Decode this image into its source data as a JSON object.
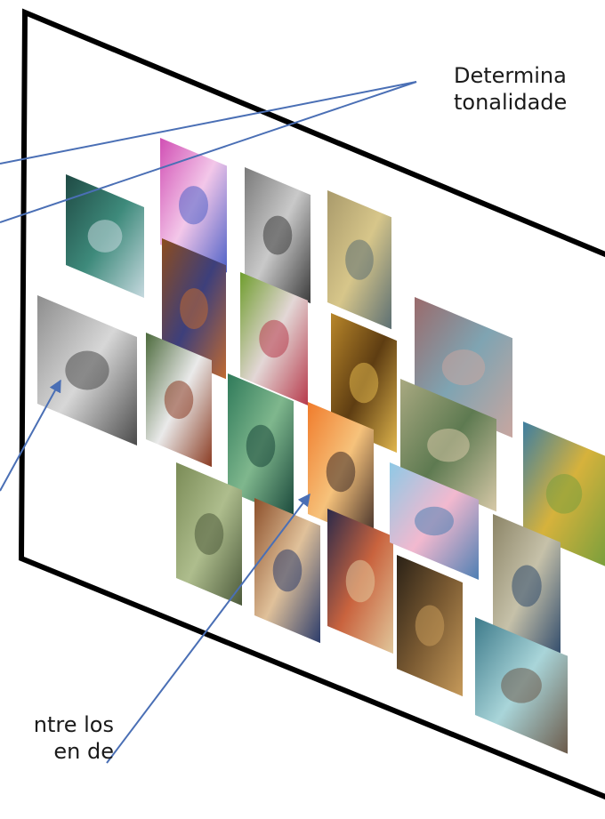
{
  "labels": {
    "top_right": [
      "Determina",
      "tonalidade"
    ],
    "bottom_left": [
      "ntre los",
      "en de"
    ]
  },
  "colors": {
    "plane_border": "#000000",
    "arrow": "#4a6fb5",
    "text": "#1a1a1a"
  },
  "thumbnails": [
    {
      "name": "thumb-teal-ring",
      "colors": [
        "#1f4a44",
        "#3e8a7b",
        "#c6d9df"
      ]
    },
    {
      "name": "thumb-pink-abstract",
      "colors": [
        "#d14fb4",
        "#f3c7e9",
        "#4e61c7"
      ]
    },
    {
      "name": "thumb-grey-leaves",
      "colors": [
        "#7a7a7a",
        "#c9c9c9",
        "#3b3b3b"
      ]
    },
    {
      "name": "thumb-window-figure",
      "colors": [
        "#a99a6b",
        "#d7c68a",
        "#5c6f73"
      ]
    },
    {
      "name": "thumb-hands-sketch",
      "colors": [
        "#8d8d8d",
        "#d7d7d7",
        "#4a4a4a"
      ]
    },
    {
      "name": "thumb-brown-vertical",
      "colors": [
        "#8c4c1e",
        "#3d3f7b",
        "#c06a31"
      ]
    },
    {
      "name": "thumb-bird-colorful",
      "colors": [
        "#6f9d2d",
        "#e3d7d6",
        "#b73a4b"
      ]
    },
    {
      "name": "thumb-figures-white",
      "colors": [
        "#4c6a3c",
        "#eaeaea",
        "#8a3b22"
      ]
    },
    {
      "name": "thumb-golden-cave",
      "colors": [
        "#b8862a",
        "#5e3d12",
        "#e0b64d"
      ]
    },
    {
      "name": "thumb-boat",
      "colors": [
        "#9a6a6b",
        "#7fa4b2",
        "#c8a6a0"
      ]
    },
    {
      "name": "thumb-green-forest",
      "colors": [
        "#2f7a5a",
        "#7fb78d",
        "#19473a"
      ]
    },
    {
      "name": "thumb-sunset-crowd",
      "colors": [
        "#f07b2b",
        "#f6c27b",
        "#3c2a26"
      ]
    },
    {
      "name": "thumb-flamingo",
      "colors": [
        "#a9a981",
        "#5e7a51",
        "#d7c9a8"
      ]
    },
    {
      "name": "thumb-cubist",
      "colors": [
        "#3e7ea0",
        "#d6b23c",
        "#7a9f3c"
      ]
    },
    {
      "name": "thumb-green-tree",
      "colors": [
        "#7a8b56",
        "#aebd8d",
        "#4c5a3b"
      ]
    },
    {
      "name": "thumb-faces-brown",
      "colors": [
        "#8c4f2a",
        "#e0c19a",
        "#2c3c6b"
      ]
    },
    {
      "name": "thumb-posterized-face",
      "colors": [
        "#2b2a4a",
        "#c9633e",
        "#e1c79b"
      ]
    },
    {
      "name": "thumb-bubble-blue",
      "colors": [
        "#8ec9e6",
        "#f2b9cf",
        "#4e7fb3"
      ]
    },
    {
      "name": "thumb-dead-tree",
      "colors": [
        "#8b8466",
        "#c6c1a9",
        "#2f4a6b"
      ]
    },
    {
      "name": "thumb-dark-face",
      "colors": [
        "#2a2116",
        "#7a5a32",
        "#c69a5a"
      ]
    },
    {
      "name": "thumb-hand-teal",
      "colors": [
        "#3d7a8a",
        "#a9d5d9",
        "#6b5a4a"
      ]
    }
  ]
}
